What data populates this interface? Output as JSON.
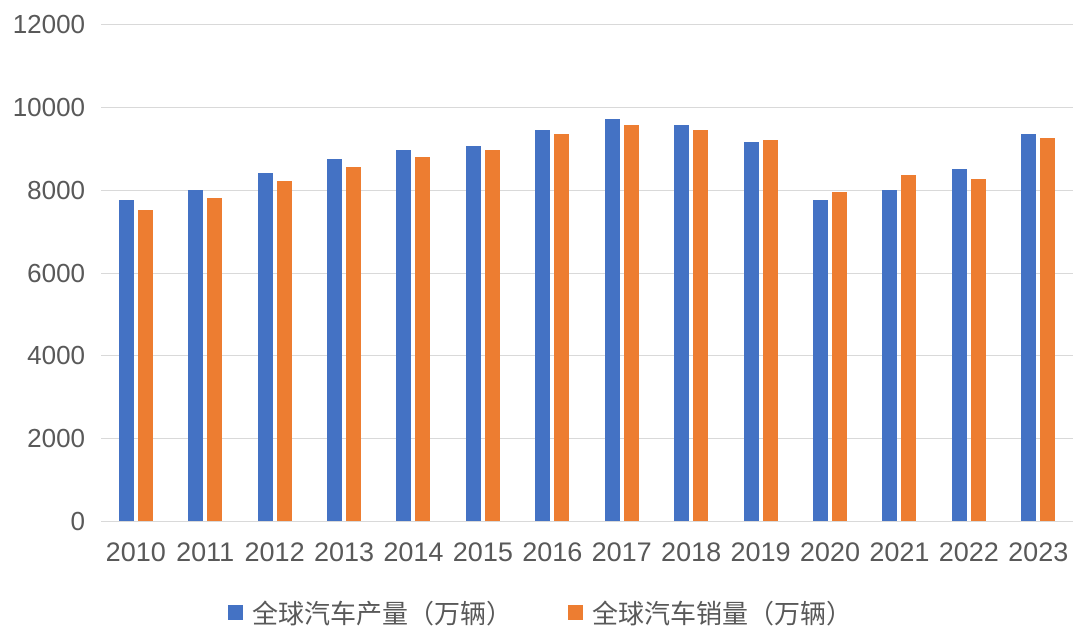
{
  "chart_data": {
    "type": "bar",
    "title": "",
    "xlabel": "",
    "ylabel": "",
    "categories": [
      "2010",
      "2011",
      "2012",
      "2013",
      "2014",
      "2015",
      "2016",
      "2017",
      "2018",
      "2019",
      "2020",
      "2021",
      "2022",
      "2023"
    ],
    "series": [
      {
        "name": "全球汽车产量（万辆）",
        "color": "#4472C4",
        "values": [
          7750,
          8000,
          8400,
          8750,
          8950,
          9050,
          9450,
          9700,
          9550,
          9150,
          7750,
          8000,
          8500,
          9350
        ]
      },
      {
        "name": "全球汽车销量（万辆）",
        "color": "#ED7D31",
        "values": [
          7500,
          7800,
          8200,
          8550,
          8800,
          8950,
          9350,
          9550,
          9450,
          9200,
          7950,
          8350,
          8250,
          9250
        ]
      }
    ],
    "ylim": [
      0,
      12000
    ],
    "ytick_interval": 2000,
    "yticks": [
      12000,
      10000,
      8000,
      6000,
      4000,
      2000,
      0
    ],
    "grid": true,
    "legend_position": "bottom",
    "gridline_color": "#d9d9d9",
    "text_color": "#595959",
    "background_color": "#ffffff"
  }
}
